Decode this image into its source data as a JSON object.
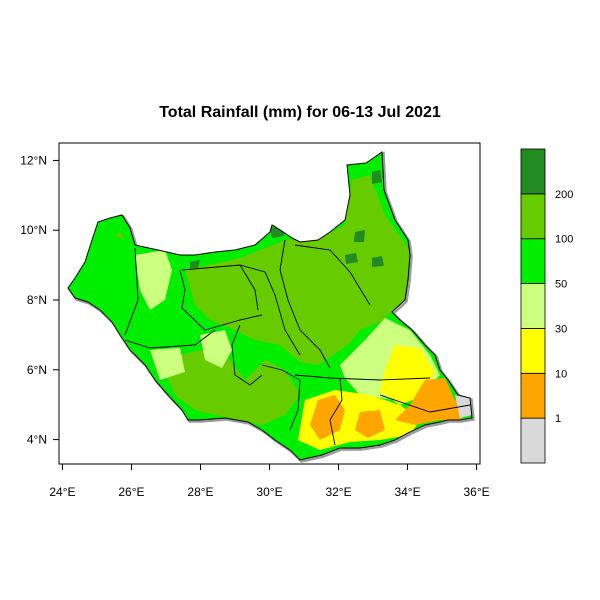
{
  "title": "Total Rainfall (mm) for 06-13 Jul 2021",
  "chart_data": {
    "type": "choropleth map",
    "title": "Total Rainfall (mm) for 06-13 Jul 2021",
    "xaxis": {
      "ticks": [
        "24°E",
        "26°E",
        "28°E",
        "30°E",
        "32°E",
        "34°E",
        "36°E"
      ],
      "values": [
        24,
        26,
        28,
        30,
        32,
        34,
        36
      ],
      "range": [
        23.9,
        36.1
      ]
    },
    "yaxis": {
      "ticks": [
        "4°N",
        "6°N",
        "8°N",
        "10°N",
        "12°N"
      ],
      "values": [
        4,
        6,
        8,
        10,
        12
      ],
      "range": [
        3.3,
        12.5
      ]
    },
    "legend": {
      "placement": "right",
      "labels": [
        "1",
        "10",
        "30",
        "50",
        "100",
        "200"
      ],
      "colors": [
        "#d9d9d9",
        "#ffa500",
        "#ffff00",
        "#ccff80",
        "#00ee00",
        "#66cc00",
        "#228b22"
      ]
    }
  }
}
